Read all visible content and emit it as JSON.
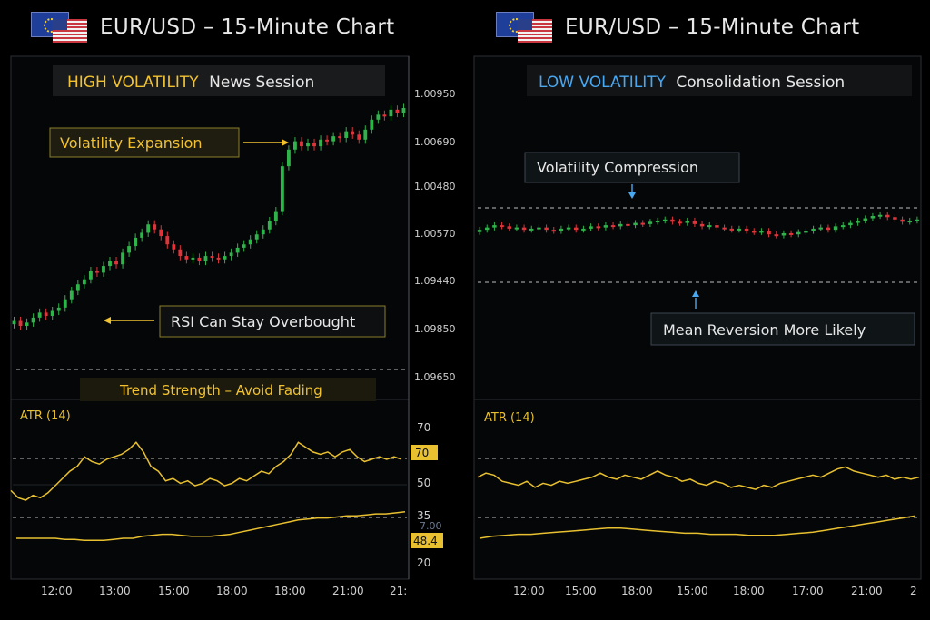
{
  "left": {
    "header_title": "EUR/USD – 15-Minute Chart",
    "session_highlight": "HIGH VOLATILITY",
    "session_rest": "News Session",
    "callout_volatility": "Volatility Expansion",
    "callout_rsi": "RSI Can Stay Overbought",
    "trend_label": "Trend Strength – Avoid Fading",
    "price_ticks": [
      "1.00950",
      "1.00690",
      "1.00480",
      "1.00570",
      "1.09440",
      "1.09850",
      "1.09650"
    ],
    "atr_label": "ATR (14)",
    "atr_ticks": [
      "70",
      "50",
      "35",
      "20"
    ],
    "atr_badge_high": "70",
    "atr_badge_low": "48.4",
    "atr_ghost": "7.00",
    "x_ticks": [
      "12:00",
      "13:00",
      "15:00",
      "18:00",
      "18:00",
      "21:00",
      "21:"
    ]
  },
  "right": {
    "header_title": "EUR/USD – 15-Minute Chart",
    "session_highlight": "LOW VOLATILITY",
    "session_rest": "Consolidation Session",
    "callout_compression": "Volatility Compression",
    "callout_mean": "Mean Reversion More Likely",
    "atr_label": "ATR (14)",
    "x_ticks": [
      "12:00",
      "15:00",
      "18:00",
      "15:00",
      "18:00",
      "17:00",
      "21:00",
      "2"
    ]
  },
  "colors": {
    "bull": "#2fb34a",
    "bear": "#e0343b",
    "atr_line": "#e8c030",
    "highlight_high": "#f2c230",
    "highlight_low": "#4aa8f0"
  },
  "chart_data": [
    {
      "type": "candlestick",
      "panel": "left-price",
      "ylim": [
        1.0,
        10.0
      ],
      "closes": [
        3.1,
        2.8,
        3.0,
        3.3,
        3.6,
        3.4,
        3.7,
        3.9,
        4.4,
        4.9,
        5.3,
        5.6,
        6.1,
        6.0,
        6.4,
        6.7,
        6.5,
        7.2,
        7.6,
        8.1,
        8.4,
        8.9,
        8.6,
        8.2,
        7.7,
        7.4,
        7.0,
        6.8,
        6.9,
        6.7,
        7.0,
        6.9,
        6.8,
        7.0,
        7.2,
        7.5,
        7.7,
        8.0,
        8.3,
        8.6,
        9.1,
        9.7,
        12.4,
        13.4,
        13.9,
        13.6,
        13.8,
        13.6,
        14.0,
        13.9,
        14.2,
        14.1,
        14.5,
        14.3,
        14.0,
        14.6,
        15.2,
        15.5,
        15.4,
        15.8,
        15.6,
        15.9
      ]
    },
    {
      "type": "line",
      "panel": "left-atr",
      "ylim": [
        20,
        70
      ],
      "series": [
        {
          "values": [
            50,
            47,
            46,
            48,
            47,
            49,
            52,
            55,
            58,
            60,
            64,
            62,
            61,
            63,
            64,
            65,
            67,
            70,
            66,
            60,
            58,
            54,
            55,
            53,
            54,
            52,
            53,
            55,
            54,
            52,
            53,
            55,
            54,
            56,
            58,
            57,
            60,
            62,
            65,
            70,
            68,
            66,
            65,
            66,
            64,
            66,
            67,
            64,
            62,
            63,
            64,
            63,
            64,
            63
          ]
        },
        {
          "values": [
            22,
            22,
            22,
            22,
            22,
            21.5,
            21.5,
            21,
            21,
            21,
            21.5,
            22,
            22,
            23,
            23.5,
            24,
            24,
            23.5,
            23,
            23,
            23,
            23.5,
            24,
            25,
            26,
            27,
            28,
            29,
            30,
            31,
            31.5,
            32,
            32,
            32.5,
            33,
            33,
            33.5,
            34,
            34,
            34.5,
            35
          ]
        }
      ]
    },
    {
      "type": "candlestick",
      "panel": "right-price",
      "ylim": [
        1.0,
        10.0
      ],
      "closes": [
        5.0,
        5.2,
        5.4,
        5.3,
        5.1,
        5.2,
        5.0,
        5.1,
        5.2,
        5.0,
        4.9,
        5.1,
        5.2,
        5.0,
        5.1,
        5.3,
        5.2,
        5.4,
        5.3,
        5.5,
        5.4,
        5.6,
        5.5,
        5.7,
        5.8,
        5.9,
        5.7,
        5.6,
        5.8,
        5.5,
        5.3,
        5.4,
        5.2,
        5.1,
        5.0,
        5.1,
        4.9,
        4.8,
        4.9,
        4.6,
        4.5,
        4.7,
        4.6,
        4.8,
        4.9,
        5.1,
        5.2,
        5.0,
        5.3,
        5.4,
        5.6,
        5.8,
        6.0,
        6.2,
        6.3,
        6.1,
        5.9,
        5.7,
        5.8,
        5.9
      ]
    },
    {
      "type": "line",
      "panel": "right-atr",
      "ylim": [
        20,
        70
      ],
      "series": [
        {
          "values": [
            52,
            54,
            53,
            50,
            49,
            48,
            50,
            47,
            49,
            48,
            50,
            49,
            50,
            51,
            52,
            54,
            52,
            51,
            53,
            52,
            51,
            53,
            55,
            53,
            52,
            50,
            51,
            49,
            48,
            50,
            49,
            47,
            48,
            47,
            46,
            48,
            47,
            49,
            50,
            51,
            52,
            53,
            52,
            54,
            56,
            57,
            55,
            54,
            53,
            52,
            53,
            51,
            52,
            51,
            52
          ]
        },
        {
          "values": [
            22,
            23,
            23.5,
            24,
            24,
            24.5,
            25,
            25.5,
            26,
            26.5,
            27,
            27,
            26.5,
            26,
            25.5,
            25,
            24.5,
            24.5,
            24,
            24,
            24,
            23.5,
            23.5,
            23.5,
            24,
            24.5,
            25,
            26,
            27,
            28,
            29,
            30,
            31,
            32,
            33
          ]
        }
      ]
    }
  ]
}
